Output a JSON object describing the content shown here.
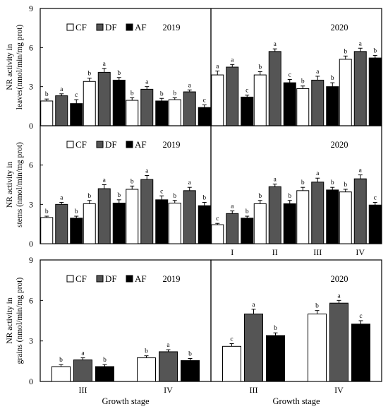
{
  "legend": {
    "items": [
      {
        "label": "CF",
        "color": "#ffffff"
      },
      {
        "label": "DF",
        "color": "#555555"
      },
      {
        "label": "AF",
        "color": "#000000"
      }
    ]
  },
  "colors": {
    "CF": "#ffffff",
    "DF": "#555555",
    "AF": "#000000",
    "axis": "#000000"
  },
  "chart_data": [
    {
      "type": "bar",
      "row": "leaves",
      "year": "2019",
      "ylabel": [
        "NR activity in",
        "leaves(nmol/min/mg  prot)"
      ],
      "ylim": [
        0,
        9
      ],
      "yticks": [
        "0",
        "3",
        "6",
        "9"
      ],
      "categories": [
        "I",
        "II",
        "III",
        "IV"
      ],
      "series": [
        {
          "name": "CF",
          "values": [
            1.9,
            3.4,
            1.95,
            2.0
          ],
          "errors": [
            0.15,
            0.25,
            0.2,
            0.15
          ],
          "letters": [
            "b",
            "b",
            "b",
            "b"
          ]
        },
        {
          "name": "DF",
          "values": [
            2.3,
            4.1,
            2.8,
            2.6
          ],
          "errors": [
            0.15,
            0.3,
            0.2,
            0.15
          ],
          "letters": [
            "a",
            "a",
            "a",
            "a"
          ]
        },
        {
          "name": "AF",
          "values": [
            1.7,
            3.5,
            1.9,
            1.4
          ],
          "errors": [
            0.3,
            0.2,
            0.2,
            0.2
          ],
          "letters": [
            "c",
            "b",
            "b",
            "c"
          ]
        }
      ],
      "legend": "top-left"
    },
    {
      "type": "bar",
      "row": "leaves",
      "year": "2020",
      "ylim": [
        0,
        9
      ],
      "categories": [
        "I",
        "II",
        "III",
        "IV"
      ],
      "series": [
        {
          "name": "CF",
          "values": [
            3.9,
            3.9,
            2.85,
            5.1
          ],
          "errors": [
            0.3,
            0.25,
            0.2,
            0.25
          ],
          "letters": [
            "a",
            "b",
            "b",
            "b"
          ]
        },
        {
          "name": "DF",
          "values": [
            4.5,
            5.7,
            3.5,
            5.7
          ],
          "errors": [
            0.2,
            0.2,
            0.3,
            0.25
          ],
          "letters": [
            "a",
            "a",
            "a",
            "a"
          ]
        },
        {
          "name": "AF",
          "values": [
            2.2,
            3.3,
            3.0,
            5.2
          ],
          "errors": [
            0.15,
            0.25,
            0.3,
            0.2
          ],
          "letters": [
            "c",
            "c",
            "b",
            "b"
          ]
        }
      ]
    },
    {
      "type": "bar",
      "row": "stems",
      "year": "2019",
      "ylabel": [
        "NR activity in",
        "stems (nmol/min/mg  prot)"
      ],
      "ylim": [
        0,
        9
      ],
      "yticks": [
        "0",
        "3",
        "6"
      ],
      "categories": [
        "I",
        "II",
        "III",
        "IV"
      ],
      "series": [
        {
          "name": "CF",
          "values": [
            2.0,
            3.05,
            4.15,
            3.1
          ],
          "errors": [
            0.1,
            0.25,
            0.25,
            0.2
          ],
          "letters": [
            "b",
            "b",
            "b",
            "b"
          ]
        },
        {
          "name": "DF",
          "values": [
            3.0,
            4.2,
            4.9,
            4.05
          ],
          "errors": [
            0.15,
            0.3,
            0.3,
            0.25
          ],
          "letters": [
            "a",
            "a",
            "a",
            "a"
          ]
        },
        {
          "name": "AF",
          "values": [
            1.95,
            3.1,
            3.35,
            2.9
          ],
          "errors": [
            0.15,
            0.25,
            0.3,
            0.25
          ],
          "letters": [
            "b",
            "b",
            "c",
            "b"
          ]
        }
      ],
      "legend": "top-left"
    },
    {
      "type": "bar",
      "row": "stems",
      "year": "2020",
      "ylim": [
        0,
        9
      ],
      "categories": [
        "I",
        "II",
        "III",
        "IV"
      ],
      "series": [
        {
          "name": "CF",
          "values": [
            1.45,
            3.05,
            4.05,
            3.95
          ],
          "errors": [
            0.1,
            0.25,
            0.25,
            0.2
          ],
          "letters": [
            "c",
            "b",
            "b",
            "b"
          ]
        },
        {
          "name": "DF",
          "values": [
            2.3,
            4.35,
            4.7,
            4.95
          ],
          "errors": [
            0.2,
            0.2,
            0.3,
            0.3
          ],
          "letters": [
            "a",
            "a",
            "a",
            "a"
          ]
        },
        {
          "name": "AF",
          "values": [
            1.95,
            3.05,
            4.1,
            2.95
          ],
          "errors": [
            0.15,
            0.25,
            0.2,
            0.2
          ],
          "letters": [
            "b",
            "b",
            "b",
            "c"
          ]
        }
      ],
      "xticks": [
        "I",
        "II",
        "III",
        "IV"
      ]
    },
    {
      "type": "bar",
      "row": "grains",
      "year": "2019",
      "ylabel": [
        "NR activity in",
        "grains (nmol/min/mg  prot)"
      ],
      "ylim": [
        0,
        9
      ],
      "yticks": [
        "0",
        "3",
        "6",
        "9"
      ],
      "categories": [
        "III",
        "IV"
      ],
      "series": [
        {
          "name": "CF",
          "values": [
            1.1,
            1.75
          ],
          "errors": [
            0.15,
            0.15
          ],
          "letters": [
            "b",
            "b"
          ]
        },
        {
          "name": "DF",
          "values": [
            1.6,
            2.2
          ],
          "errors": [
            0.15,
            0.15
          ],
          "letters": [
            "a",
            "a"
          ]
        },
        {
          "name": "AF",
          "values": [
            1.1,
            1.55
          ],
          "errors": [
            0.15,
            0.15
          ],
          "letters": [
            "b",
            "b"
          ]
        }
      ],
      "xlabel": "Growth stage",
      "legend": "top-left"
    },
    {
      "type": "bar",
      "row": "grains",
      "year": "2020",
      "ylim": [
        0,
        9
      ],
      "categories": [
        "III",
        "IV"
      ],
      "series": [
        {
          "name": "CF",
          "values": [
            2.6,
            5.0
          ],
          "errors": [
            0.2,
            0.25
          ],
          "letters": [
            "c",
            "b"
          ]
        },
        {
          "name": "DF",
          "values": [
            5.0,
            5.8
          ],
          "errors": [
            0.35,
            0.2
          ],
          "letters": [
            "a",
            "a"
          ]
        },
        {
          "name": "AF",
          "values": [
            3.4,
            4.25
          ],
          "errors": [
            0.2,
            0.25
          ],
          "letters": [
            "b",
            "c"
          ]
        }
      ],
      "xlabel": "Growth stage"
    }
  ]
}
